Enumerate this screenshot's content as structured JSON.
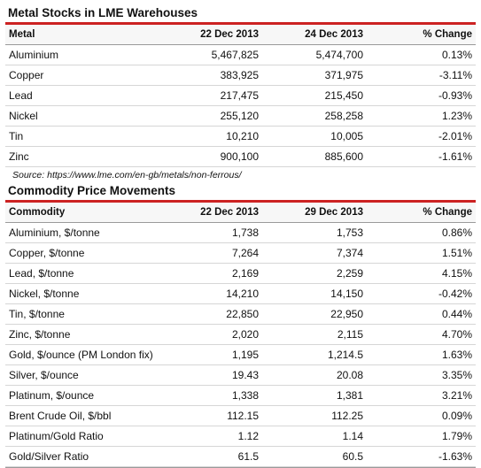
{
  "stocks": {
    "title": "Metal Stocks in LME Warehouses",
    "columns": [
      "Metal",
      "22 Dec 2013",
      "24 Dec 2013",
      "% Change"
    ],
    "rows": [
      [
        "Aluminium",
        "5,467,825",
        "5,474,700",
        "0.13%"
      ],
      [
        "Copper",
        "383,925",
        "371,975",
        "-3.11%"
      ],
      [
        "Lead",
        "217,475",
        "215,450",
        "-0.93%"
      ],
      [
        "Nickel",
        "255,120",
        "258,258",
        "1.23%"
      ],
      [
        "Tin",
        "10,210",
        "10,005",
        "-2.01%"
      ],
      [
        "Zinc",
        "900,100",
        "885,600",
        "-1.61%"
      ]
    ],
    "source": "Source: https://www.lme.com/en-gb/metals/non-ferrous/"
  },
  "prices": {
    "title": "Commodity Price Movements",
    "columns": [
      "Commodity",
      "22 Dec 2013",
      "29 Dec 2013",
      "% Change"
    ],
    "rows": [
      [
        "Aluminium, $/tonne",
        "1,738",
        "1,753",
        "0.86%"
      ],
      [
        "Copper, $/tonne",
        "7,264",
        "7,374",
        "1.51%"
      ],
      [
        "Lead, $/tonne",
        "2,169",
        "2,259",
        "4.15%"
      ],
      [
        "Nickel, $/tonne",
        "14,210",
        "14,150",
        "-0.42%"
      ],
      [
        "Tin, $/tonne",
        "22,850",
        "22,950",
        "0.44%"
      ],
      [
        "Zinc, $/tonne",
        "2,020",
        "2,115",
        "4.70%"
      ],
      [
        "Gold, $/ounce (PM London fix)",
        "1,195",
        "1,214.5",
        "1.63%"
      ],
      [
        "Silver, $/ounce",
        "19.43",
        "20.08",
        "3.35%"
      ],
      [
        "Platinum, $/ounce",
        "1,338",
        "1,381",
        "3.21%"
      ],
      [
        "Brent Crude Oil, $/bbl",
        "112.15",
        "112.25",
        "0.09%"
      ],
      [
        "Platinum/Gold Ratio",
        "1.12",
        "1.14",
        "1.79%"
      ],
      [
        "Gold/Silver Ratio",
        "61.5",
        "60.5",
        "-1.63%"
      ]
    ]
  },
  "colors": {
    "title_rule": "#cc2222",
    "row_rule": "#d6d6d6",
    "header_bg": "#f7f7f7"
  }
}
